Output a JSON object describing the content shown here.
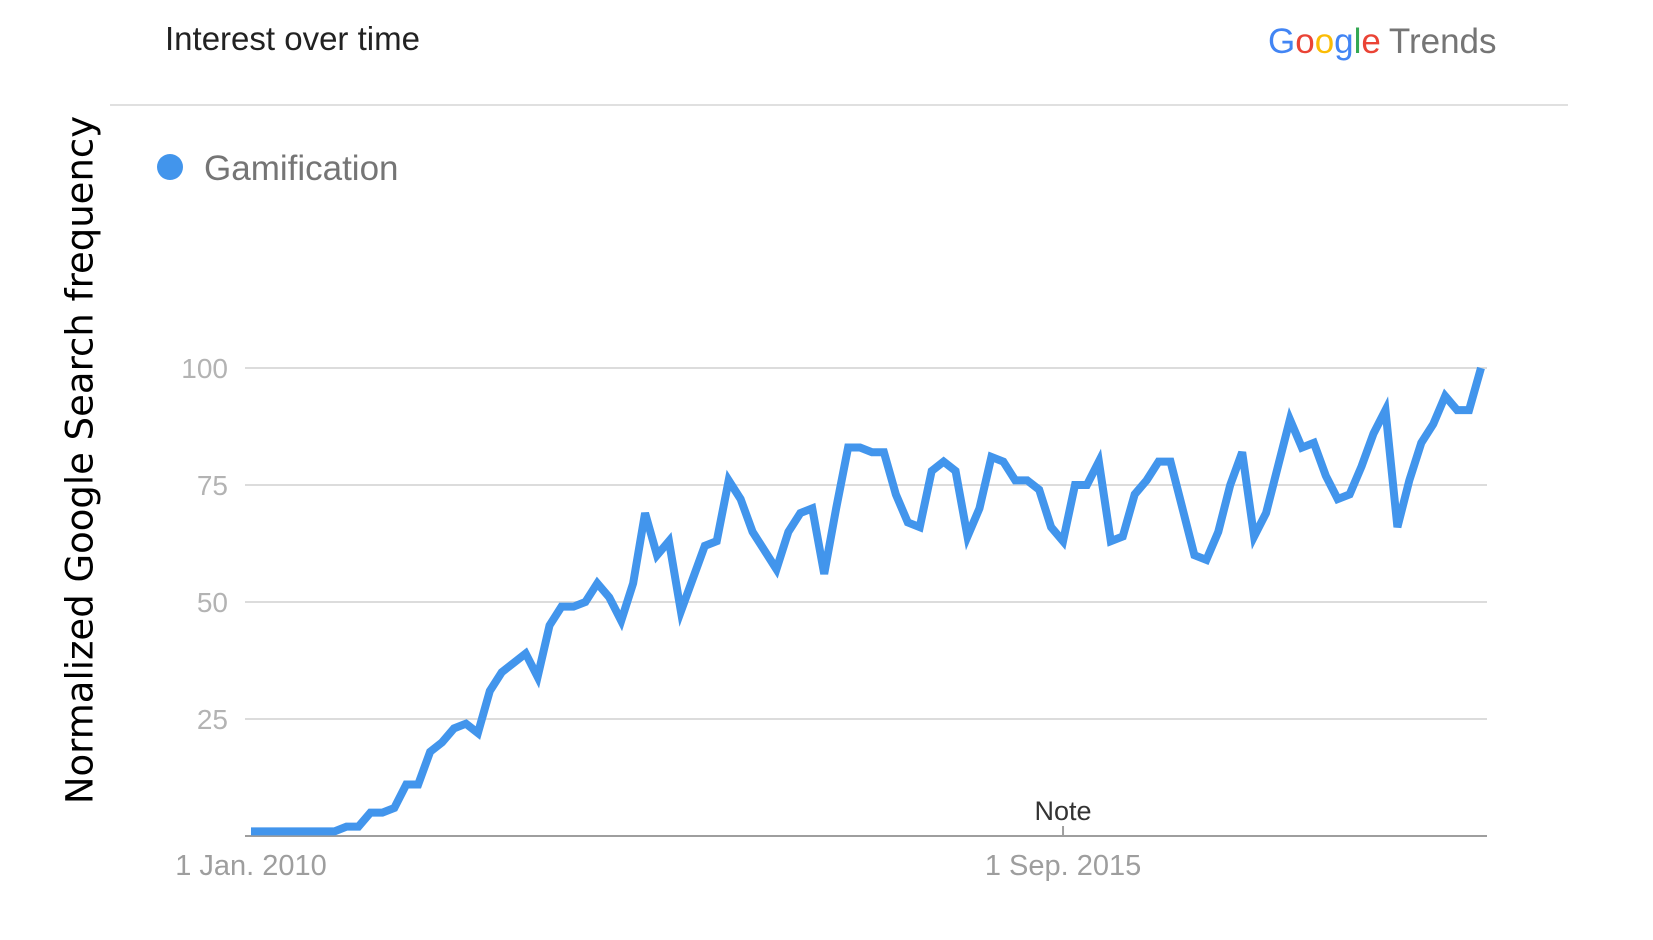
{
  "header": {
    "title": "Interest over time",
    "brand_google": "Google",
    "brand_trends": "Trends",
    "brand_colors": [
      "#4285F4",
      "#EA4335",
      "#FBBC05",
      "#4285F4",
      "#34A853",
      "#EA4335"
    ]
  },
  "note_label": "Note",
  "chart_data": {
    "type": "line",
    "title": "Interest over time",
    "ylabel": "Normalized Google Search frequency",
    "xlabel": "",
    "ylim": [
      0,
      100
    ],
    "yticks": [
      25,
      50,
      75,
      100
    ],
    "x_tick_labels": [
      {
        "label": "1 Jan. 2010",
        "index": 0
      },
      {
        "label": "1 Sep. 2015",
        "index": 68
      }
    ],
    "grid": true,
    "legend_position": "top-left",
    "series": [
      {
        "name": "Gamification",
        "color": "#4295EC",
        "values": [
          1,
          1,
          1,
          1,
          1,
          1,
          1,
          1,
          2,
          2,
          5,
          5,
          6,
          11,
          11,
          18,
          20,
          23,
          24,
          22,
          31,
          35,
          37,
          39,
          34,
          45,
          49,
          49,
          50,
          54,
          51,
          46,
          54,
          69,
          60,
          63,
          48,
          55,
          62,
          63,
          76,
          72,
          65,
          61,
          57,
          65,
          69,
          70,
          56,
          70,
          83,
          83,
          82,
          82,
          73,
          67,
          66,
          78,
          80,
          78,
          64,
          70,
          81,
          80,
          76,
          76,
          74,
          66,
          63,
          75,
          75,
          80,
          63,
          64,
          73,
          76,
          80,
          80,
          70,
          60,
          59,
          65,
          75,
          82,
          64,
          69,
          79,
          89,
          83,
          84,
          77,
          72,
          73,
          79,
          86,
          91,
          66,
          76,
          84,
          88,
          94,
          91,
          91,
          100
        ]
      }
    ]
  }
}
